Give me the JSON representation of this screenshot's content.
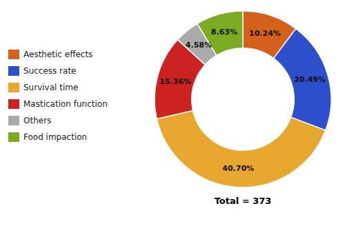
{
  "chart_data": {
    "type": "donut",
    "categories": [
      "Aesthetic effects",
      "Success rate",
      "Survival time",
      "Mastication function",
      "Others",
      "Food impaction"
    ],
    "values": [
      10.24,
      20.49,
      40.7,
      15.36,
      4.58,
      8.63
    ],
    "value_labels": [
      "10.24%",
      "20.49%",
      "40.70%",
      "15.36%",
      "4.58%",
      "8.63%"
    ],
    "colors": [
      "#D4601A",
      "#2E4FCC",
      "#E8A830",
      "#CC2222",
      "#AAAAAA",
      "#7AAB22"
    ],
    "data_labels": true,
    "legend": "left",
    "annotations": [
      "Total = 373"
    ]
  }
}
